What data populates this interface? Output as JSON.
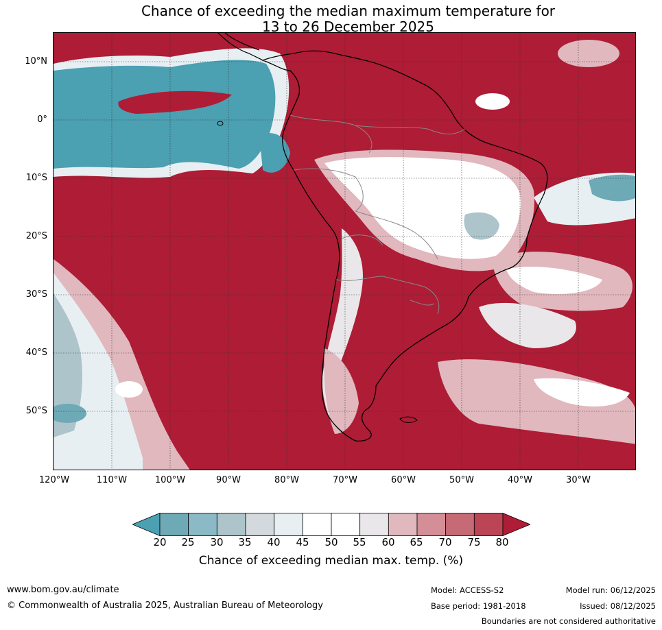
{
  "title": {
    "line1": "Chance of exceeding the median maximum temperature for",
    "line2": "13 to 26 December 2025"
  },
  "map": {
    "background_color": "#ae1c35",
    "lat_labels": [
      "10°N",
      "0°",
      "10°S",
      "20°S",
      "30°S",
      "40°S",
      "50°S"
    ],
    "lon_labels": [
      "120°W",
      "110°W",
      "100°W",
      "90°W",
      "80°W",
      "70°W",
      "60°W",
      "50°W",
      "40°W",
      "30°W"
    ]
  },
  "colorbar": {
    "ticks": [
      "20",
      "25",
      "30",
      "35",
      "40",
      "45",
      "50",
      "55",
      "60",
      "65",
      "70",
      "75",
      "80"
    ],
    "colors": [
      "#4ba0b2",
      "#6ea9b6",
      "#8bb9c6",
      "#adc4cb",
      "#d3d9dc",
      "#e8eff2",
      "#ffffff",
      "#ffffff",
      "#e9e7e9",
      "#e0b8be",
      "#d38e97",
      "#c66a76",
      "#bb4554",
      "#ae1c35"
    ],
    "label": "Chance of exceeding median max. temp. (%)"
  },
  "footer": {
    "website": "www.bom.gov.au/climate",
    "copyright": "© Commonwealth of Australia 2025, Australian Bureau of Meteorology",
    "model": "Model: ACCESS-S2",
    "base_period": "Base period: 1981-2018",
    "model_run": "Model run: 06/12/2025",
    "issued": "Issued: 08/12/2025",
    "disclaimer": "Boundaries are not considered authoritative"
  }
}
